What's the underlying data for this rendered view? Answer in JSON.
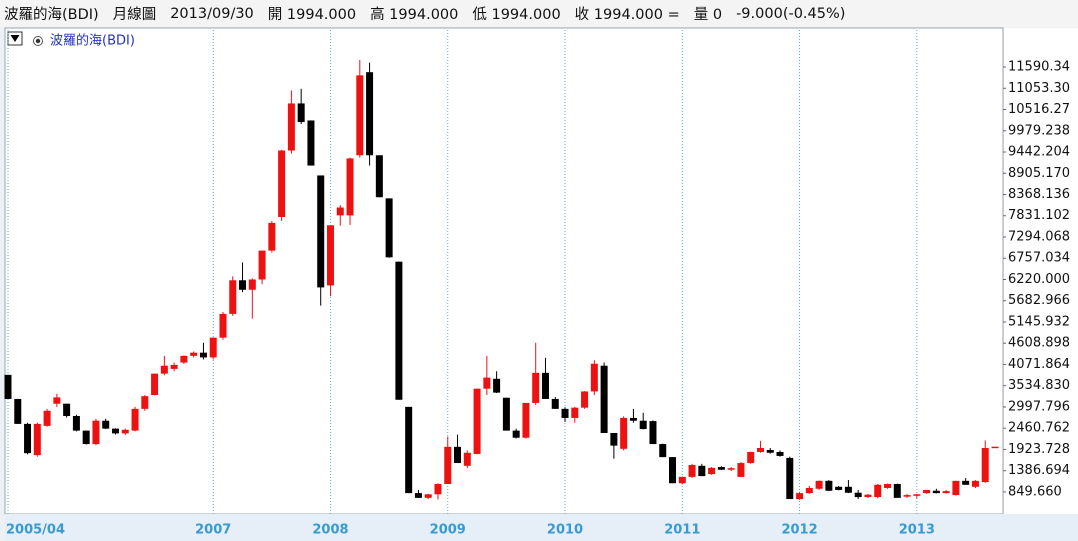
{
  "header": {
    "fields": [
      "波羅的海(BDI)",
      "月線圖",
      "2013/09/30",
      "開 1994.000",
      "高 1994.000",
      "低 1994.000",
      "收 1994.000 =",
      "量 0",
      "-9.000(-0.45%)"
    ]
  },
  "chart_data": {
    "type": "candlestick",
    "legend": "波羅的海(BDI)",
    "up_color": "#ee1111",
    "down_color": "#000000",
    "x": [
      "2005/04",
      "2005/05",
      "2005/06",
      "2005/07",
      "2005/08",
      "2005/09",
      "2005/10",
      "2005/11",
      "2005/12",
      "2006/01",
      "2006/02",
      "2006/03",
      "2006/04",
      "2006/05",
      "2006/06",
      "2006/07",
      "2006/08",
      "2006/09",
      "2006/10",
      "2006/11",
      "2006/12",
      "2007/01",
      "2007/02",
      "2007/03",
      "2007/04",
      "2007/05",
      "2007/06",
      "2007/07",
      "2007/08",
      "2007/09",
      "2007/10",
      "2007/11",
      "2007/12",
      "2008/01",
      "2008/02",
      "2008/03",
      "2008/04",
      "2008/05",
      "2008/06",
      "2008/07",
      "2008/08",
      "2008/09",
      "2008/10",
      "2008/11",
      "2008/12",
      "2009/01",
      "2009/02",
      "2009/03",
      "2009/04",
      "2009/05",
      "2009/06",
      "2009/07",
      "2009/08",
      "2009/09",
      "2009/10",
      "2009/11",
      "2009/12",
      "2010/01",
      "2010/02",
      "2010/03",
      "2010/04",
      "2010/05",
      "2010/06",
      "2010/07",
      "2010/08",
      "2010/09",
      "2010/10",
      "2010/11",
      "2010/12",
      "2011/01",
      "2011/02",
      "2011/03",
      "2011/04",
      "2011/05",
      "2011/06",
      "2011/07",
      "2011/08",
      "2011/09",
      "2011/10",
      "2011/11",
      "2011/12",
      "2012/01",
      "2012/02",
      "2012/03",
      "2012/04",
      "2012/05",
      "2012/06",
      "2012/07",
      "2012/08",
      "2012/09",
      "2012/10",
      "2012/11",
      "2012/12",
      "2013/01",
      "2013/02",
      "2013/03",
      "2013/04",
      "2013/05",
      "2013/06",
      "2013/07",
      "2013/08",
      "2013/09"
    ],
    "open": [
      3810,
      3200,
      2570,
      1780,
      2520,
      3080,
      3080,
      2770,
      2400,
      2060,
      2650,
      2450,
      2330,
      2400,
      2950,
      3300,
      3840,
      3960,
      4120,
      4290,
      4370,
      4250,
      4750,
      5350,
      6200,
      5960,
      6220,
      6950,
      7800,
      9480,
      10670,
      10240,
      8850,
      6070,
      7840,
      7840,
      9360,
      11460,
      9360,
      8270,
      6670,
      3000,
      820,
      700,
      790,
      1050,
      1990,
      1510,
      1810,
      3460,
      3710,
      3230,
      2400,
      2220,
      3100,
      3860,
      3200,
      2950,
      2720,
      2980,
      3390,
      4040,
      2340,
      1940,
      2720,
      2650,
      2640,
      2060,
      1730,
      1070,
      1230,
      1510,
      1300,
      1480,
      1410,
      1230,
      1580,
      1860,
      1910,
      1860,
      1710,
      670,
      820,
      930,
      1130,
      980,
      980,
      830,
      720,
      720,
      950,
      1050,
      730,
      770,
      820,
      880,
      820,
      770,
      1130,
      980,
      1100,
      1994
    ],
    "high": [
      3810,
      3200,
      2600,
      2600,
      2950,
      3330,
      3080,
      2800,
      2400,
      2700,
      2700,
      2460,
      2450,
      3000,
      3300,
      3840,
      4290,
      4120,
      4300,
      4400,
      4620,
      4750,
      5400,
      6300,
      6650,
      6250,
      6950,
      7700,
      9500,
      11000,
      11040,
      10240,
      8850,
      7600,
      8100,
      9300,
      11770,
      11700,
      9360,
      8270,
      6670,
      3000,
      900,
      800,
      1070,
      2250,
      2300,
      1900,
      3460,
      4290,
      3900,
      3230,
      2450,
      3100,
      4620,
      4240,
      3250,
      2990,
      3000,
      3400,
      4180,
      4120,
      2340,
      2760,
      2950,
      2850,
      2660,
      2070,
      1730,
      1240,
      1560,
      1560,
      1480,
      1500,
      1480,
      1610,
      1870,
      2140,
      1960,
      1900,
      1740,
      850,
      1000,
      1140,
      1150,
      1000,
      1150,
      900,
      800,
      1050,
      1060,
      1060,
      800,
      800,
      900,
      930,
      900,
      1130,
      1200,
      1150,
      2150,
      1994
    ],
    "low": [
      3200,
      2570,
      1800,
      1740,
      2500,
      3000,
      2730,
      2380,
      2050,
      2030,
      2440,
      2300,
      2290,
      2380,
      2900,
      3290,
      3800,
      3900,
      4080,
      4250,
      4200,
      4200,
      4700,
      5300,
      5900,
      5230,
      6100,
      6900,
      7700,
      9400,
      10150,
      9100,
      5560,
      5800,
      7580,
      7600,
      9300,
      9100,
      8300,
      6770,
      3180,
      820,
      700,
      670,
      660,
      1050,
      1580,
      1450,
      1800,
      3300,
      3350,
      2400,
      2200,
      2200,
      3050,
      3200,
      2950,
      2620,
      2600,
      2950,
      3300,
      2340,
      1690,
      1900,
      2600,
      2430,
      2060,
      1730,
      1070,
      1040,
      1200,
      1250,
      1280,
      1400,
      1380,
      1220,
      1560,
      1840,
      1820,
      1740,
      670,
      650,
      800,
      900,
      870,
      890,
      820,
      670,
      700,
      690,
      930,
      700,
      700,
      690,
      800,
      810,
      810,
      760,
      1030,
      950,
      1080,
      1994
    ],
    "close": [
      3200,
      2570,
      1830,
      2570,
      2900,
      3240,
      2770,
      2400,
      2060,
      2650,
      2450,
      2330,
      2420,
      2950,
      3270,
      3840,
      4040,
      4060,
      4290,
      4370,
      4250,
      4750,
      5350,
      6200,
      5960,
      6220,
      6950,
      7650,
      9480,
      10670,
      10200,
      9100,
      6020,
      7590,
      8040,
      9280,
      11380,
      9360,
      8300,
      6780,
      3180,
      820,
      700,
      790,
      1050,
      1990,
      1580,
      1840,
      3460,
      3740,
      3360,
      2400,
      2220,
      3100,
      3860,
      3200,
      2950,
      2720,
      2980,
      3390,
      4090,
      2340,
      2020,
      2720,
      2650,
      2440,
      2060,
      1730,
      1070,
      1230,
      1530,
      1250,
      1460,
      1410,
      1450,
      1580,
      1860,
      1960,
      1840,
      1760,
      670,
      820,
      950,
      1130,
      880,
      900,
      830,
      720,
      780,
      1030,
      1050,
      700,
      770,
      790,
      900,
      820,
      870,
      1130,
      1030,
      1130,
      1960,
      1994
    ],
    "ylim": [
      292,
      12577
    ],
    "yticks": [
      {
        "value": 849.66,
        "label": "849.660"
      },
      {
        "value": 1386.694,
        "label": "1386.694"
      },
      {
        "value": 1923.728,
        "label": "1923.728"
      },
      {
        "value": 2460.762,
        "label": "2460.762"
      },
      {
        "value": 2997.796,
        "label": "2997.796"
      },
      {
        "value": 3534.83,
        "label": "3534.830"
      },
      {
        "value": 4071.864,
        "label": "4071.864"
      },
      {
        "value": 4608.898,
        "label": "4608.898"
      },
      {
        "value": 5145.932,
        "label": "5145.932"
      },
      {
        "value": 5682.966,
        "label": "5682.966"
      },
      {
        "value": 6220,
        "label": "6220.000"
      },
      {
        "value": 6757.034,
        "label": "6757.034"
      },
      {
        "value": 7294.068,
        "label": "7294.068"
      },
      {
        "value": 7831.102,
        "label": "7831.102"
      },
      {
        "value": 8368.136,
        "label": "8368.136"
      },
      {
        "value": 8905.17,
        "label": "8905.170"
      },
      {
        "value": 9442.204,
        "label": "9442.204"
      },
      {
        "value": 9979.238,
        "label": "9979.238"
      },
      {
        "value": 10516.272,
        "label": "10516.27"
      },
      {
        "value": 11053.306,
        "label": "11053.30"
      },
      {
        "value": 11590.34,
        "label": "11590.34"
      }
    ],
    "xticks": [
      {
        "value": "2005/04",
        "label": "2005/04"
      },
      {
        "value": "2007/01",
        "label": "2007"
      },
      {
        "value": "2008/01",
        "label": "2008"
      },
      {
        "value": "2009/01",
        "label": "2009"
      },
      {
        "value": "2010/01",
        "label": "2010"
      },
      {
        "value": "2011/01",
        "label": "2011"
      },
      {
        "value": "2012/01",
        "label": "2012"
      },
      {
        "value": "2013/01",
        "label": "2013"
      }
    ],
    "grid": true
  }
}
